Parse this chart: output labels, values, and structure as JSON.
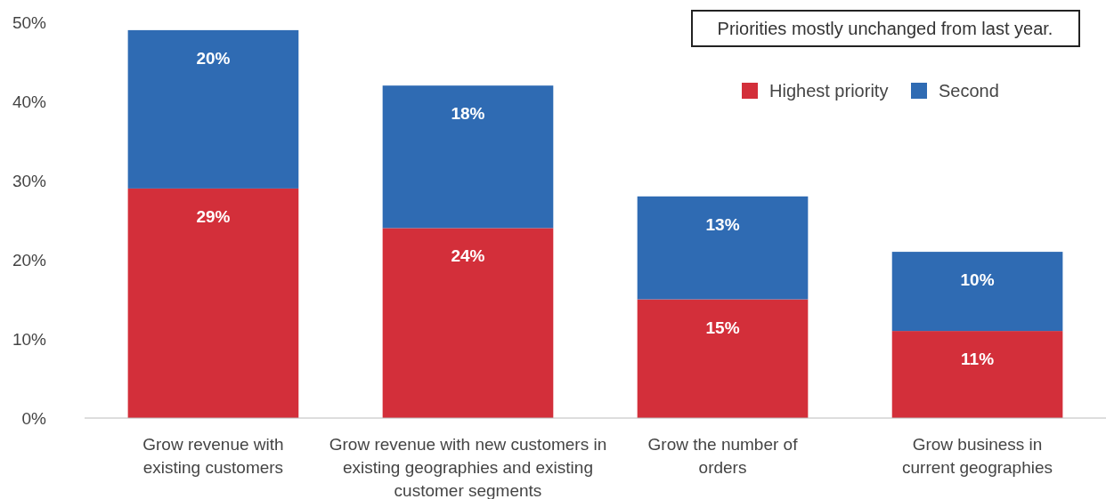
{
  "chart_data": {
    "type": "bar",
    "stacked": true,
    "categories": [
      "Grow revenue with existing customers",
      "Grow revenue with new customers in existing geographies and existing customer segments",
      "Grow the number of orders",
      "Grow business in current geographies"
    ],
    "series": [
      {
        "name": "Highest priority",
        "color": "#d32f3a",
        "values": [
          29,
          24,
          15,
          11
        ],
        "value_labels": [
          "29%",
          "24%",
          "15%",
          "11%"
        ]
      },
      {
        "name": "Second",
        "color": "#2f6bb3",
        "values": [
          20,
          18,
          13,
          10
        ],
        "value_labels": [
          "20%",
          "18%",
          "13%",
          "10%"
        ]
      }
    ],
    "ylim": [
      0,
      50
    ],
    "yticks": [
      {
        "value": 0,
        "label": "0%"
      },
      {
        "value": 10,
        "label": "10%"
      },
      {
        "value": 20,
        "label": "20%"
      },
      {
        "value": 30,
        "label": "30%"
      },
      {
        "value": 40,
        "label": "40%"
      },
      {
        "value": 50,
        "label": "50%"
      }
    ],
    "legend": "top right",
    "grid": false,
    "annotations": [
      "Priorities mostly unchanged from last year."
    ]
  }
}
